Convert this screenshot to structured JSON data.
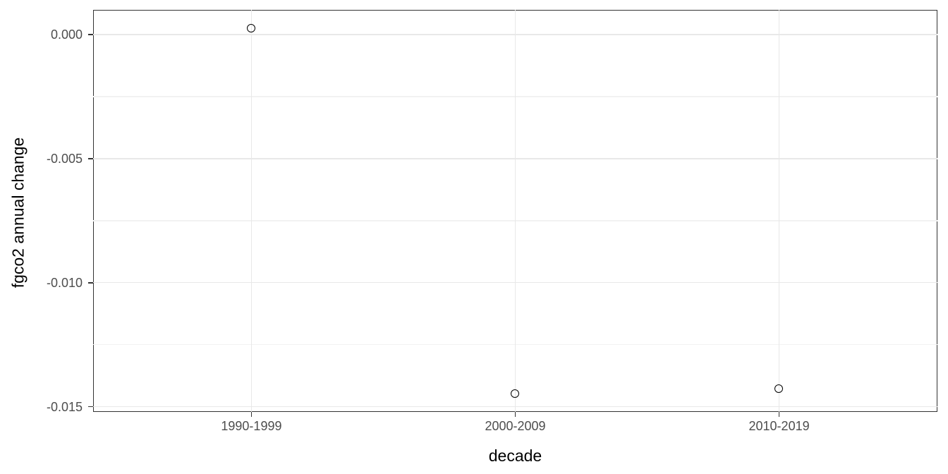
{
  "chart_data": {
    "type": "scatter",
    "title": "",
    "categories": [
      "1990-1999",
      "2000-2009",
      "2010-2019"
    ],
    "values": [
      0.00025,
      -0.0145,
      -0.0143
    ],
    "xlabel": "decade",
    "ylabel": "fgco2 annual change",
    "ylim": [
      -0.01521,
      0.001
    ],
    "yticks": [
      0,
      -0.005,
      -0.01,
      -0.015
    ],
    "ytick_labels": [
      "0.000",
      "-0.005",
      "-0.010",
      "-0.015"
    ],
    "yminor": [
      -0.0025,
      -0.0075,
      -0.0125
    ],
    "grid": true,
    "legend_position": "none",
    "marker": "open-circle"
  },
  "style": {
    "background": "#ffffff",
    "panel_border": "#333333",
    "grid_major": "#e8e8e8",
    "grid_minor": "#f2f2f2",
    "tick_color": "#333333",
    "tick_label_color": "#4d4d4d",
    "axis_title_color": "#000000",
    "point_color": "#000000"
  }
}
